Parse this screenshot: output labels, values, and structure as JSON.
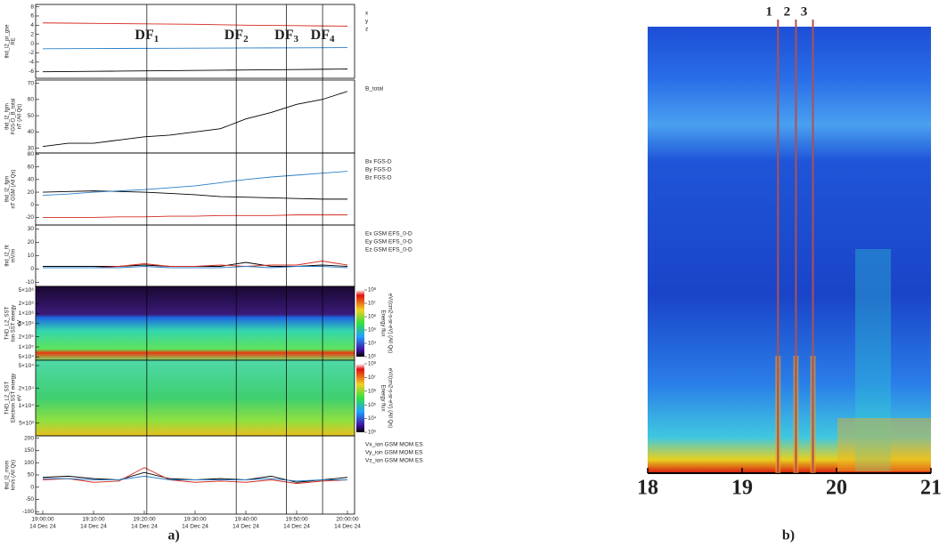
{
  "figure_a": {
    "label": "a)",
    "xlim": [
      0,
      60
    ],
    "date": "14 Dec 24",
    "xticks": [
      {
        "value": 0,
        "label": "19:00:00"
      },
      {
        "value": 10,
        "label": "19:10:00"
      },
      {
        "value": 20,
        "label": "19:20:00"
      },
      {
        "value": 30,
        "label": "19:30:00"
      },
      {
        "value": 40,
        "label": "19:40:00"
      },
      {
        "value": 50,
        "label": "19:50:00"
      },
      {
        "value": 60,
        "label": "20:00:00"
      }
    ],
    "events": [
      {
        "label": "DF",
        "sub": "1",
        "x": 20.5
      },
      {
        "label": "DF",
        "sub": "2",
        "x": 38.1
      },
      {
        "label": "DF",
        "sub": "3",
        "x": 48.0
      },
      {
        "label": "DF",
        "sub": "4",
        "x": 55.1
      }
    ]
  },
  "figure_b": {
    "label": "b)",
    "xlim": [
      18,
      21
    ],
    "xticks": [
      18,
      19,
      20,
      21
    ],
    "events": [
      {
        "label": "1",
        "x": 19.38
      },
      {
        "label": "2",
        "x": 19.57
      },
      {
        "label": "3",
        "x": 19.75
      }
    ]
  },
  "chart_data": [
    {
      "type": "line",
      "ylabel": [
        "thd_l2_pr_gse",
        "RE"
      ],
      "ylim": [
        -7.5,
        8.5
      ],
      "yticks": [
        8,
        6,
        4,
        2,
        0,
        -2,
        -4,
        -6
      ],
      "x": [
        0,
        5,
        10,
        15,
        20,
        25,
        30,
        35,
        40,
        45,
        50,
        55,
        60
      ],
      "series": [
        {
          "name": "x",
          "color": "#000000",
          "values": [
            -6.1,
            -6.05,
            -6,
            -5.95,
            -5.9,
            -5.85,
            -5.8,
            -5.75,
            -5.7,
            -5.65,
            -5.6,
            -5.55,
            -5.5
          ]
        },
        {
          "name": "y",
          "color": "#d62a1e",
          "values": [
            4.5,
            4.45,
            4.4,
            4.35,
            4.3,
            4.25,
            4.2,
            4.1,
            4,
            3.95,
            3.9,
            3.85,
            3.8
          ]
        },
        {
          "name": "z",
          "color": "#2a7fc9",
          "values": [
            -1.1,
            -1.08,
            -1.06,
            -1.04,
            -1.02,
            -1,
            -0.98,
            -0.96,
            -0.94,
            -0.92,
            -0.9,
            -0.88,
            -0.86
          ]
        }
      ]
    },
    {
      "type": "line",
      "ylabel": [
        "thd_l2_fgm",
        "FGS-D_B_total",
        "nT (All Qs)"
      ],
      "ylim": [
        27,
        72
      ],
      "yticks": [
        70,
        60,
        50,
        40,
        30
      ],
      "x": [
        0,
        5,
        10,
        15,
        20,
        25,
        30,
        35,
        40,
        45,
        50,
        55,
        60
      ],
      "series": [
        {
          "name": "B_total",
          "color": "#000000",
          "values": [
            31,
            33,
            33,
            35,
            37,
            38,
            40,
            42,
            48,
            52,
            57,
            60,
            65
          ]
        }
      ]
    },
    {
      "type": "line",
      "ylabel": [
        "thd_l2_fgm",
        "nT GSM (All Qs)"
      ],
      "ylim": [
        -32,
        82
      ],
      "yticks": [
        80,
        60,
        40,
        20,
        0,
        -20
      ],
      "x": [
        0,
        5,
        10,
        15,
        20,
        25,
        30,
        35,
        40,
        45,
        50,
        55,
        60
      ],
      "series": [
        {
          "name": "Bx FGS-D",
          "color": "#000000",
          "values": [
            20,
            21,
            22,
            21,
            20,
            18,
            16,
            13,
            12,
            11,
            10,
            9,
            9
          ]
        },
        {
          "name": "By FGS-D",
          "color": "#d62a1e",
          "values": [
            -20,
            -20,
            -20,
            -19,
            -19,
            -18,
            -18,
            -17,
            -17,
            -17,
            -16,
            -16,
            -16
          ]
        },
        {
          "name": "Bz FGS-D",
          "color": "#2a7fc9",
          "values": [
            15,
            17,
            20,
            22,
            24,
            27,
            30,
            35,
            40,
            44,
            47,
            50,
            53
          ]
        }
      ]
    },
    {
      "type": "line",
      "ylabel": [
        "thd_l2_fit",
        "mV/m"
      ],
      "ylim": [
        -13,
        33
      ],
      "yticks": [
        30,
        20,
        10,
        0,
        -10
      ],
      "x": [
        0,
        5,
        10,
        15,
        20,
        25,
        30,
        35,
        40,
        45,
        50,
        55,
        60
      ],
      "series": [
        {
          "name": "Ex GSM EFS_0-D",
          "color": "#000000",
          "values": [
            2,
            2,
            2,
            2,
            3,
            2,
            2,
            2,
            5,
            2,
            2,
            3,
            2
          ]
        },
        {
          "name": "Ey GSM EFS_0-D",
          "color": "#d62a1e",
          "values": [
            1,
            1,
            1,
            2,
            4,
            2,
            2,
            3,
            2,
            3,
            3,
            6,
            3
          ]
        },
        {
          "name": "Ez GSM EFS_0-D",
          "color": "#2a7fc9",
          "values": [
            1,
            1,
            1,
            1,
            2,
            1,
            1,
            1,
            2,
            1,
            2,
            2,
            1
          ]
        }
      ]
    },
    {
      "type": "spectrogram",
      "ylabel": [
        "THD_L2_SST",
        "Ion SST energy",
        "eV"
      ],
      "log": true,
      "ylim": [
        40000,
        6500000
      ],
      "yticks": [
        {
          "value": 5000000,
          "label": "5×10⁶"
        },
        {
          "value": 2000000,
          "label": "2×10⁶"
        },
        {
          "value": 1000000,
          "label": "1×10⁶"
        },
        {
          "value": 500000,
          "label": "5×10⁵"
        },
        {
          "value": 200000,
          "label": "2×10⁵"
        },
        {
          "value": 100000,
          "label": "1×10⁵"
        },
        {
          "value": 50000,
          "label": "5×10⁴"
        }
      ],
      "zlabel": [
        "Energy flux",
        "eV/(cm2-s-sr-eV) (All Qs)"
      ],
      "zlim": [
        1000,
        100000000
      ],
      "zticks": [
        {
          "value": 100000000,
          "label": "10⁸"
        },
        {
          "value": 10000000,
          "label": "10⁷"
        },
        {
          "value": 1000000,
          "label": "10⁶"
        },
        {
          "value": 100000,
          "label": "10⁵"
        },
        {
          "value": 10000,
          "label": "10⁴"
        },
        {
          "value": 1000,
          "label": "10³"
        }
      ]
    },
    {
      "type": "spectrogram",
      "ylabel": [
        "THD_L2_SST",
        "Electron SST energy",
        "eV"
      ],
      "log": true,
      "ylim": [
        3000,
        62000
      ],
      "yticks": [
        {
          "value": 50000,
          "label": "5×10⁴"
        },
        {
          "value": 20000,
          "label": "2×10⁴"
        },
        {
          "value": 10000,
          "label": "1×10⁴"
        },
        {
          "value": 5000,
          "label": "5×10³"
        }
      ],
      "zlabel": [
        "Energy flux",
        "eV/(cm2-s-sr-eV) (All Qs)"
      ],
      "zlim": [
        1000,
        100000000
      ],
      "zticks": [
        {
          "value": 100000000,
          "label": "10⁸"
        },
        {
          "value": 10000000,
          "label": "10⁷"
        },
        {
          "value": 1000000,
          "label": "10⁶"
        },
        {
          "value": 100000,
          "label": "10⁵"
        },
        {
          "value": 10000,
          "label": "10⁴"
        },
        {
          "value": 1000,
          "label": "10³"
        }
      ]
    },
    {
      "type": "line",
      "ylabel": [
        "thd_l2_mom",
        "km/s (All Qs)"
      ],
      "ylim": [
        -110,
        210
      ],
      "yticks": [
        200,
        150,
        100,
        50,
        0,
        -50,
        -100
      ],
      "x": [
        0,
        5,
        10,
        15,
        20,
        25,
        30,
        35,
        40,
        45,
        50,
        55,
        60
      ],
      "series": [
        {
          "name": "Vx_ion GSM MOM ES",
          "color": "#000000",
          "values": [
            40,
            45,
            35,
            30,
            60,
            35,
            30,
            35,
            30,
            45,
            20,
            30,
            40
          ]
        },
        {
          "name": "Vy_ion GSM MOM ES",
          "color": "#d62a1e",
          "values": [
            30,
            35,
            20,
            25,
            80,
            30,
            20,
            25,
            20,
            30,
            15,
            25,
            30
          ]
        },
        {
          "name": "Vz_ion GSM MOM ES",
          "color": "#2a7fc9",
          "values": [
            35,
            35,
            30,
            30,
            45,
            30,
            30,
            30,
            30,
            35,
            25,
            30,
            30
          ]
        }
      ]
    }
  ]
}
